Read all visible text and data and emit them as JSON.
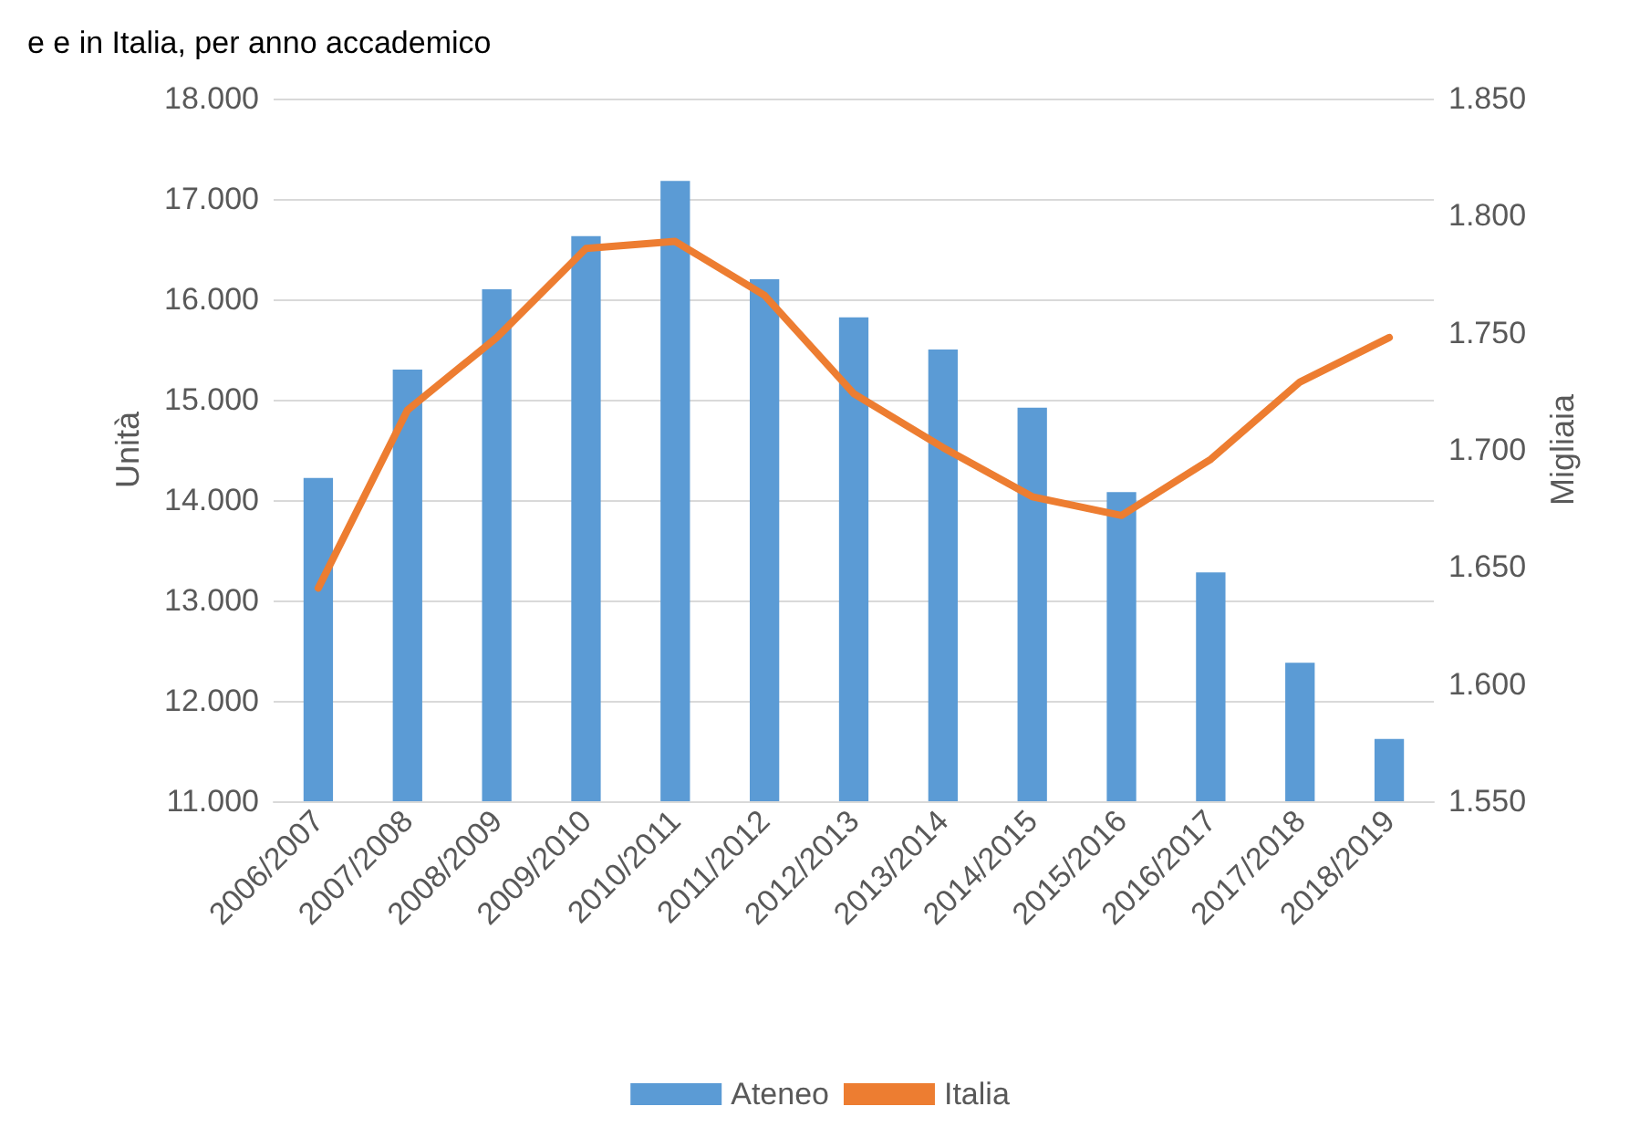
{
  "chart_data": {
    "type": "bar",
    "title": "e e in Italia, per anno accademico",
    "ylabel": "Unità",
    "y2label": "Migliaia",
    "categories": [
      "2006/2007",
      "2007/2008",
      "2008/2009",
      "2009/2010",
      "2010/2011",
      "2011/2012",
      "2012/2013",
      "2013/2014",
      "2014/2015",
      "2015/2016",
      "2016/2017",
      "2017/2018",
      "2018/2019"
    ],
    "series": [
      {
        "name": "Ateneo",
        "color": "#5b9bd5",
        "values": [
          14220,
          15300,
          16100,
          16630,
          17180,
          16200,
          15820,
          15500,
          14920,
          14080,
          13280,
          12380,
          11620
        ]
      },
      {
        "name": "Italia",
        "type": "line",
        "axis": "y2",
        "color": "#ed7d31",
        "values": [
          1641,
          1717,
          1748,
          1786,
          1789,
          1766,
          1724,
          1701,
          1680,
          1672,
          1696,
          1729,
          1748
        ]
      }
    ],
    "ylim": [
      11000,
      18000
    ],
    "yticks": [
      {
        "value": 11000,
        "label": "11.000"
      },
      {
        "value": 12000,
        "label": "12.000"
      },
      {
        "value": 13000,
        "label": "13.000"
      },
      {
        "value": 14000,
        "label": "14.000"
      },
      {
        "value": 15000,
        "label": "15.000"
      },
      {
        "value": 16000,
        "label": "16.000"
      },
      {
        "value": 17000,
        "label": "17.000"
      },
      {
        "value": 18000,
        "label": "18.000"
      }
    ],
    "y2lim": [
      1550,
      1850
    ],
    "y2ticks": [
      {
        "value": 1550,
        "label": "1.550"
      },
      {
        "value": 1600,
        "label": "1.600"
      },
      {
        "value": 1650,
        "label": "1.650"
      },
      {
        "value": 1700,
        "label": "1.700"
      },
      {
        "value": 1750,
        "label": "1.750"
      },
      {
        "value": 1800,
        "label": "1.800"
      },
      {
        "value": 1850,
        "label": "1.850"
      }
    ],
    "grid": "y",
    "legend": "bottom",
    "marker": "none",
    "line_style": "solid"
  }
}
